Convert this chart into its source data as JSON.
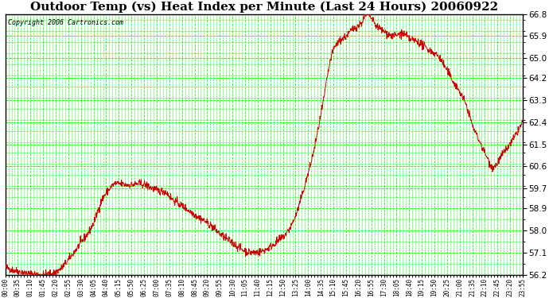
{
  "title": "Outdoor Temp (vs) Heat Index per Minute (Last 24 Hours) 20060922",
  "copyright": "Copyright 2006 Cartronics.com",
  "yticks": [
    56.2,
    57.1,
    58.0,
    58.9,
    59.7,
    60.6,
    61.5,
    62.4,
    63.3,
    64.2,
    65.0,
    65.9,
    66.8
  ],
  "ymin": 56.2,
  "ymax": 66.8,
  "bg_color": "#ffffff",
  "plot_bg_color": "#ffffff",
  "grid_color": "#00ff00",
  "line_color": "#cc0000",
  "title_fontsize": 11,
  "copyright_fontsize": 6,
  "xtick_labels": [
    "00:00",
    "00:35",
    "01:10",
    "01:45",
    "02:20",
    "02:55",
    "03:30",
    "04:05",
    "04:40",
    "05:15",
    "05:50",
    "06:25",
    "07:00",
    "07:35",
    "08:10",
    "08:45",
    "09:20",
    "09:55",
    "10:30",
    "11:05",
    "11:40",
    "12:15",
    "12:50",
    "13:25",
    "14:00",
    "14:35",
    "15:10",
    "15:45",
    "16:20",
    "16:55",
    "17:30",
    "18:05",
    "18:40",
    "19:15",
    "19:50",
    "20:25",
    "21:00",
    "21:35",
    "22:10",
    "22:45",
    "23:20",
    "23:55"
  ],
  "keypoints_t": [
    0,
    45,
    105,
    150,
    175,
    210,
    250,
    270,
    285,
    295,
    315,
    345,
    375,
    410,
    430,
    450,
    455,
    470,
    490,
    510,
    540,
    570,
    600,
    630,
    660,
    690,
    720,
    750,
    785,
    810,
    830,
    855,
    870,
    885,
    900,
    920,
    945,
    965,
    990,
    1005,
    1020,
    1040,
    1060,
    1080,
    1100,
    1120,
    1140,
    1160,
    1180,
    1205,
    1225,
    1245,
    1265,
    1285,
    1295,
    1310,
    1325,
    1335,
    1350,
    1375,
    1400,
    1420,
    1435
  ],
  "keypoints_v": [
    56.5,
    56.3,
    56.2,
    56.4,
    56.8,
    57.5,
    58.5,
    59.3,
    59.6,
    59.8,
    59.9,
    59.85,
    59.9,
    59.7,
    59.6,
    59.5,
    59.4,
    59.2,
    59.0,
    58.8,
    58.5,
    58.2,
    57.8,
    57.5,
    57.2,
    57.1,
    57.2,
    57.5,
    58.0,
    58.8,
    59.8,
    61.2,
    62.3,
    63.5,
    64.8,
    65.6,
    65.9,
    66.2,
    66.5,
    66.8,
    66.5,
    66.2,
    66.0,
    65.9,
    66.0,
    65.8,
    65.7,
    65.5,
    65.3,
    65.0,
    64.5,
    64.0,
    63.5,
    62.8,
    62.3,
    61.8,
    61.3,
    61.0,
    60.6,
    61.0,
    61.5,
    62.0,
    62.4
  ],
  "noise_seed": 42,
  "noise_std": 0.08
}
